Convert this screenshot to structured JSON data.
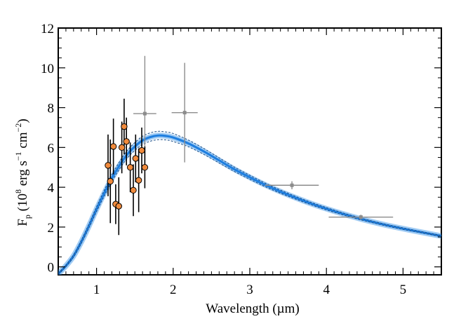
{
  "chart_data": {
    "type": "scatter",
    "title": "",
    "xlabel": "Wavelength (µm)",
    "ylabel": {
      "main": "F",
      "sub": "p",
      "paren_open": " (10",
      "exp1": "8",
      "mid": " erg s",
      "exp2": "−1",
      "mid2": " cm",
      "exp3": "−2",
      "paren_close": ")"
    },
    "xlim": [
      0.5,
      5.5
    ],
    "ylim": [
      -0.4,
      12
    ],
    "xticks": [
      1,
      2,
      3,
      4,
      5
    ],
    "xtick_labels": [
      "1",
      "2",
      "3",
      "4",
      "5"
    ],
    "yticks": [
      0,
      2,
      4,
      6,
      8,
      10,
      12
    ],
    "ytick_labels": [
      "0",
      "2",
      "4",
      "6",
      "8",
      "10",
      "12"
    ],
    "grid": false,
    "colors": {
      "model_fill": "#2e8fe6",
      "model_line": "#1f7fe0",
      "model_dash": "#1a4f8a",
      "orange_points": "#f08a3c",
      "orange_errorbars": "#000000",
      "gray_points": "#8c8c8c"
    },
    "model_curve": {
      "name": "",
      "x": [
        0.5,
        0.6,
        0.7,
        0.8,
        0.9,
        1.0,
        1.1,
        1.2,
        1.3,
        1.4,
        1.5,
        1.6,
        1.7,
        1.8,
        1.9,
        2.0,
        2.2,
        2.4,
        2.6,
        2.8,
        3.0,
        3.2,
        3.4,
        3.6,
        3.8,
        4.0,
        4.2,
        4.4,
        4.6,
        4.8,
        5.0,
        5.2,
        5.5
      ],
      "y": [
        -0.35,
        0.05,
        0.55,
        1.25,
        2.05,
        2.9,
        3.7,
        4.45,
        5.1,
        5.65,
        6.05,
        6.35,
        6.52,
        6.6,
        6.58,
        6.5,
        6.2,
        5.8,
        5.35,
        4.9,
        4.5,
        4.12,
        3.78,
        3.47,
        3.18,
        2.92,
        2.68,
        2.46,
        2.26,
        2.08,
        1.92,
        1.77,
        1.55
      ],
      "y_upper": [
        -0.32,
        0.09,
        0.61,
        1.33,
        2.15,
        3.02,
        3.85,
        4.62,
        5.28,
        5.84,
        6.25,
        6.56,
        6.73,
        6.81,
        6.78,
        6.7,
        6.37,
        5.95,
        5.48,
        5.01,
        4.6,
        4.21,
        3.86,
        3.54,
        3.24,
        2.98,
        2.73,
        2.51,
        2.3,
        2.12,
        1.96,
        1.8,
        1.58
      ],
      "y_lower": [
        -0.38,
        0.01,
        0.49,
        1.17,
        1.95,
        2.78,
        3.55,
        4.28,
        4.92,
        5.46,
        5.85,
        6.14,
        6.31,
        6.39,
        6.38,
        6.3,
        6.03,
        5.65,
        5.22,
        4.79,
        4.4,
        4.03,
        3.7,
        3.4,
        3.12,
        2.86,
        2.63,
        2.41,
        2.22,
        2.04,
        1.88,
        1.74,
        1.52
      ]
    },
    "orange_series": {
      "name": "",
      "points": [
        {
          "x": 1.15,
          "y": 5.1,
          "err": 1.55
        },
        {
          "x": 1.18,
          "y": 4.3,
          "err": 2.1
        },
        {
          "x": 1.22,
          "y": 6.05,
          "err": 1.4
        },
        {
          "x": 1.25,
          "y": 3.15,
          "err": 1.0
        },
        {
          "x": 1.29,
          "y": 3.05,
          "err": 1.45
        },
        {
          "x": 1.33,
          "y": 6.0,
          "err": 1.3
        },
        {
          "x": 1.36,
          "y": 7.05,
          "err": 1.4
        },
        {
          "x": 1.39,
          "y": 6.3,
          "err": 1.2
        },
        {
          "x": 1.44,
          "y": 5.0,
          "err": 1.25
        },
        {
          "x": 1.48,
          "y": 3.85,
          "err": 1.3
        },
        {
          "x": 1.51,
          "y": 5.45,
          "err": 1.2
        },
        {
          "x": 1.55,
          "y": 4.35,
          "err": 1.6
        },
        {
          "x": 1.59,
          "y": 5.85,
          "err": 1.15
        },
        {
          "x": 1.63,
          "y": 5.0,
          "err": 1.05
        }
      ]
    },
    "gray_series": {
      "name": "",
      "points": [
        {
          "x": 1.63,
          "y": 7.7,
          "yerr": 2.9,
          "xerr": 0.15
        },
        {
          "x": 2.15,
          "y": 7.75,
          "yerr": 2.5,
          "xerr": 0.17
        },
        {
          "x": 3.55,
          "y": 4.1,
          "yerr": 0.2,
          "xerr": 0.35
        },
        {
          "x": 4.45,
          "y": 2.5,
          "yerr": 0.12,
          "xerr": 0.42
        }
      ]
    }
  }
}
